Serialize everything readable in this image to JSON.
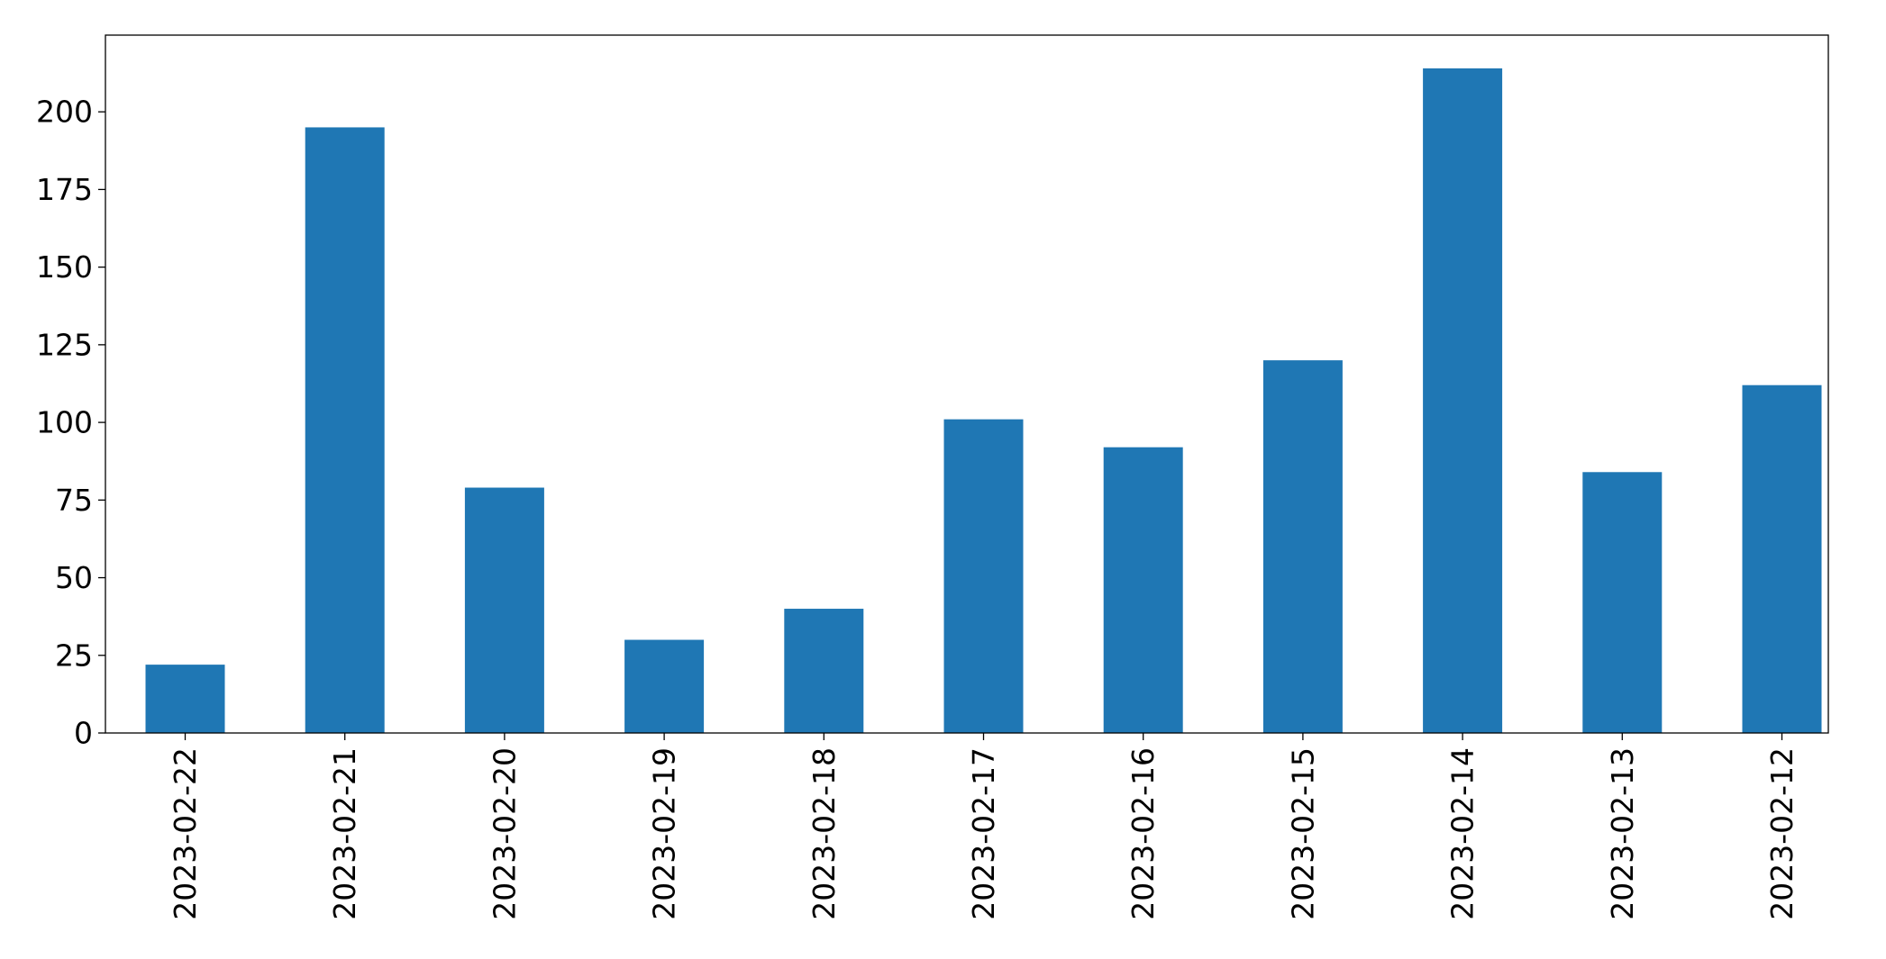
{
  "chart_data": {
    "type": "bar",
    "title": "",
    "xlabel": "",
    "ylabel": "",
    "categories": [
      "2023-02-22",
      "2023-02-21",
      "2023-02-20",
      "2023-02-19",
      "2023-02-18",
      "2023-02-17",
      "2023-02-16",
      "2023-02-15",
      "2023-02-14",
      "2023-02-13",
      "2023-02-12"
    ],
    "values": [
      22,
      195,
      79,
      30,
      40,
      101,
      92,
      120,
      214,
      84,
      112
    ],
    "ylim": [
      0,
      224.7
    ],
    "yticks": [
      0,
      25,
      50,
      75,
      100,
      125,
      150,
      175,
      200
    ],
    "grid": false,
    "legend": "none",
    "bar_color": "#1f77b4"
  }
}
